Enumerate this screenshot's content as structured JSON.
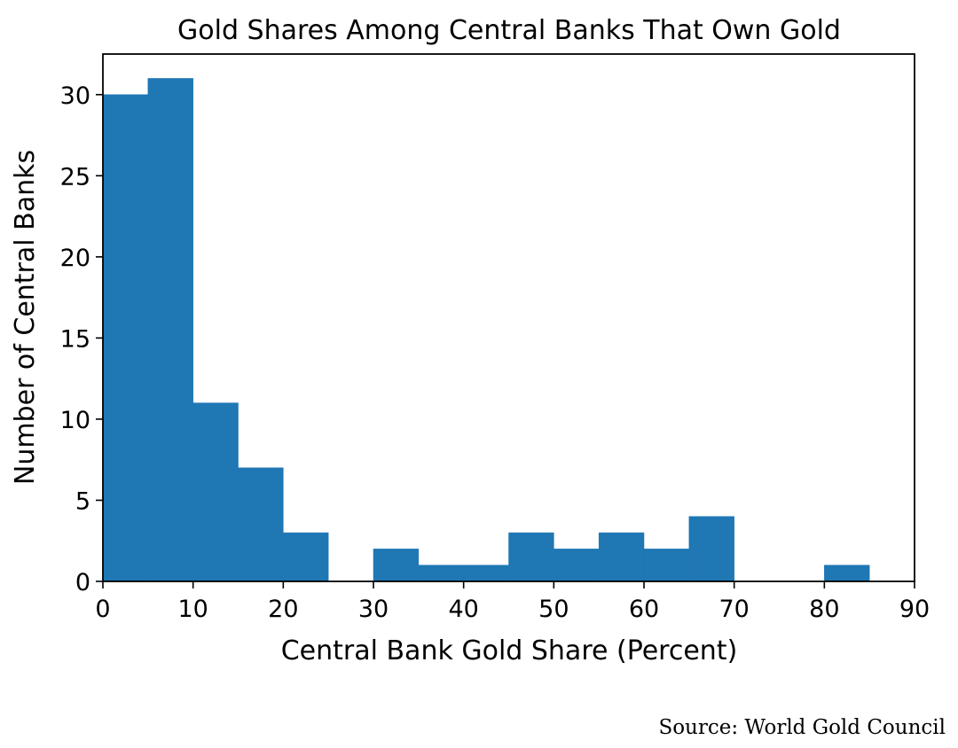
{
  "chart_data": {
    "type": "bar",
    "title": "Gold Shares Among Central Banks That Own Gold",
    "xlabel": "Central Bank Gold Share (Percent)",
    "ylabel": "Number of Central Banks",
    "xlim": [
      0,
      90
    ],
    "ylim": [
      0,
      32.5
    ],
    "bin_width": 5,
    "x_ticks": [
      0,
      10,
      20,
      30,
      40,
      50,
      60,
      70,
      80,
      90
    ],
    "y_ticks": [
      0,
      5,
      10,
      15,
      20,
      25,
      30
    ],
    "bins": [
      {
        "start": 0,
        "end": 5,
        "count": 30
      },
      {
        "start": 5,
        "end": 10,
        "count": 31
      },
      {
        "start": 10,
        "end": 15,
        "count": 11
      },
      {
        "start": 15,
        "end": 20,
        "count": 7
      },
      {
        "start": 20,
        "end": 25,
        "count": 3
      },
      {
        "start": 25,
        "end": 30,
        "count": 0
      },
      {
        "start": 30,
        "end": 35,
        "count": 2
      },
      {
        "start": 35,
        "end": 40,
        "count": 1
      },
      {
        "start": 40,
        "end": 45,
        "count": 1
      },
      {
        "start": 45,
        "end": 50,
        "count": 3
      },
      {
        "start": 50,
        "end": 55,
        "count": 2
      },
      {
        "start": 55,
        "end": 60,
        "count": 3
      },
      {
        "start": 60,
        "end": 65,
        "count": 2
      },
      {
        "start": 65,
        "end": 70,
        "count": 4
      },
      {
        "start": 70,
        "end": 75,
        "count": 0
      },
      {
        "start": 75,
        "end": 80,
        "count": 0
      },
      {
        "start": 80,
        "end": 85,
        "count": 1
      },
      {
        "start": 85,
        "end": 90,
        "count": 0
      }
    ],
    "grid": false,
    "color": "#1f77b4"
  },
  "footer": {
    "source": "Source:  World Gold Council"
  }
}
